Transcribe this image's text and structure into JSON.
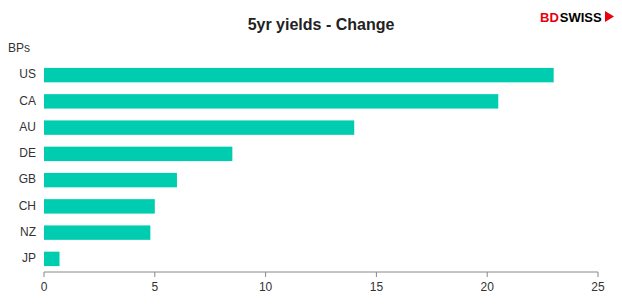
{
  "chart_data": {
    "type": "bar",
    "orientation": "horizontal",
    "title": "5yr yields - Change",
    "ylabel": "BPs",
    "categories": [
      "US",
      "CA",
      "AU",
      "DE",
      "GB",
      "CH",
      "NZ",
      "JP"
    ],
    "values": [
      23,
      20.5,
      14,
      8.5,
      6,
      5.0,
      4.8,
      0.7
    ],
    "color": "#00CDB0",
    "xlim": [
      0,
      25
    ],
    "xticks": [
      0,
      5,
      10,
      15,
      20,
      25
    ],
    "grid": false,
    "annotations": [
      {
        "text": "BD",
        "color": "#e8000d"
      },
      {
        "text": "SWISS",
        "color": "#000000"
      }
    ]
  }
}
